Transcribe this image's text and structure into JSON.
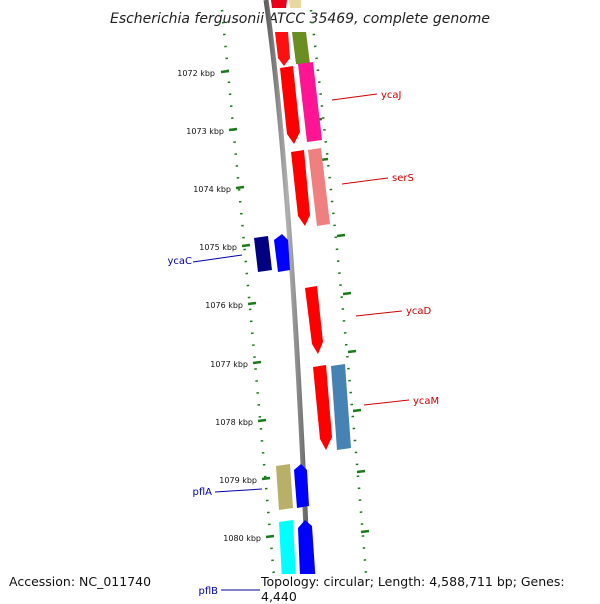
{
  "title": "Escherichia fergusonii ATCC 35469, complete genome",
  "footer": {
    "accession": "Accession: NC_011740",
    "summary": "Topology: circular; Length: 4,588,711 bp; Genes: 4,440"
  },
  "colors": {
    "backbone": "#808080",
    "tick": "#1a7a1a",
    "label_forward": "#0000aa",
    "label_reverse": "#cc0000"
  },
  "ticks": [
    "1072 kbp",
    "1073 kbp",
    "1074 kbp",
    "1075 kbp",
    "1076 kbp",
    "1077 kbp",
    "1078 kbp",
    "1079 kbp",
    "1080 kbp"
  ],
  "gene_labels": [
    {
      "name": "ycaJ",
      "strand": "reverse"
    },
    {
      "name": "serS",
      "strand": "reverse"
    },
    {
      "name": "ycaC",
      "strand": "forward"
    },
    {
      "name": "ycaD",
      "strand": "reverse"
    },
    {
      "name": "ycaM",
      "strand": "reverse"
    },
    {
      "name": "pflA",
      "strand": "forward"
    },
    {
      "name": "pflB",
      "strand": "forward"
    }
  ]
}
